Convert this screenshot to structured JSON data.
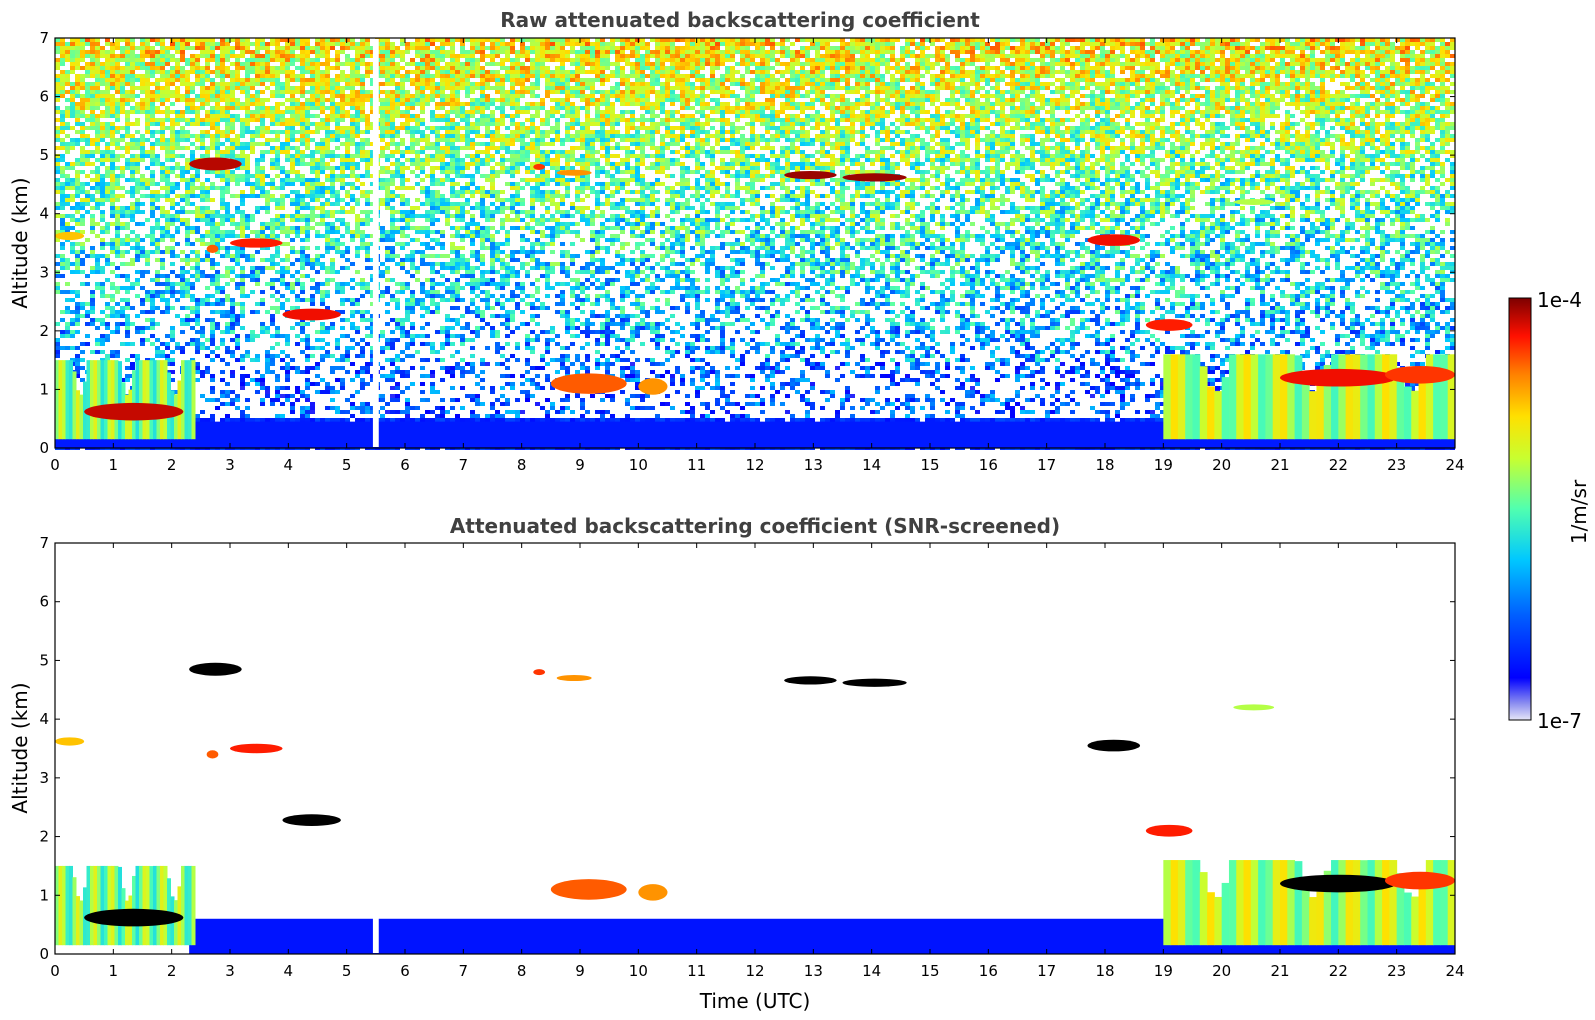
{
  "chart_data": [
    {
      "type": "heatmap",
      "title": "Raw attenuated backscattering coefficient",
      "xlabel": "",
      "ylabel": "Altitude (km)",
      "xlim": [
        0,
        24
      ],
      "ylim": [
        0,
        7
      ],
      "x_ticks": [
        0,
        1,
        2,
        3,
        4,
        5,
        6,
        7,
        8,
        9,
        10,
        11,
        12,
        13,
        14,
        15,
        16,
        17,
        18,
        19,
        20,
        21,
        22,
        23,
        24
      ],
      "y_ticks": [
        0,
        1,
        2,
        3,
        4,
        5,
        6,
        7
      ],
      "data_gap": [
        5.45,
        5.55
      ],
      "clouds": [
        {
          "t0": 2.3,
          "t1": 3.2,
          "alt": 4.85,
          "h": 0.22,
          "level": 0.96
        },
        {
          "t0": 3.0,
          "t1": 3.9,
          "alt": 3.5,
          "h": 0.16,
          "level": 0.9
        },
        {
          "t0": 2.6,
          "t1": 2.8,
          "alt": 3.4,
          "h": 0.14,
          "level": 0.85
        },
        {
          "t0": 3.9,
          "t1": 4.9,
          "alt": 2.28,
          "h": 0.2,
          "level": 0.92
        },
        {
          "t0": 0.0,
          "t1": 0.5,
          "alt": 3.62,
          "h": 0.14,
          "level": 0.75
        },
        {
          "t0": 8.2,
          "t1": 8.4,
          "alt": 4.8,
          "h": 0.1,
          "level": 0.88
        },
        {
          "t0": 8.6,
          "t1": 9.2,
          "alt": 4.7,
          "h": 0.06,
          "level": 0.8
        },
        {
          "t0": 12.5,
          "t1": 13.4,
          "alt": 4.66,
          "h": 0.14,
          "level": 0.98
        },
        {
          "t0": 13.5,
          "t1": 14.6,
          "alt": 4.62,
          "h": 0.14,
          "level": 0.98
        },
        {
          "t0": 17.7,
          "t1": 18.6,
          "alt": 3.55,
          "h": 0.2,
          "level": 0.92
        },
        {
          "t0": 18.7,
          "t1": 19.5,
          "alt": 2.1,
          "h": 0.2,
          "level": 0.9
        },
        {
          "t0": 20.2,
          "t1": 20.9,
          "alt": 4.2,
          "h": 0.1,
          "level": 0.6
        },
        {
          "t0": 21.0,
          "t1": 23.0,
          "alt": 1.2,
          "h": 0.3,
          "level": 0.92
        },
        {
          "t0": 22.8,
          "t1": 24.0,
          "alt": 1.25,
          "h": 0.3,
          "level": 0.88
        },
        {
          "t0": 8.5,
          "t1": 9.8,
          "alt": 1.1,
          "h": 0.35,
          "level": 0.85
        },
        {
          "t0": 10.0,
          "t1": 10.5,
          "alt": 1.05,
          "h": 0.28,
          "level": 0.8
        },
        {
          "t0": 0.5,
          "t1": 2.2,
          "alt": 0.62,
          "h": 0.3,
          "level": 0.95
        }
      ],
      "low_layers": [
        {
          "t0": 0.0,
          "t1": 2.4,
          "top": 1.5,
          "level": 0.55
        },
        {
          "t0": 19.0,
          "t1": 24.0,
          "top": 1.6,
          "level": 0.6
        }
      ]
    },
    {
      "type": "heatmap",
      "title": "Attenuated backscattering coefficient (SNR-screened)",
      "xlabel": "Time (UTC)",
      "ylabel": "Altitude (km)",
      "xlim": [
        0,
        24
      ],
      "ylim": [
        0,
        7
      ],
      "x_ticks": [
        0,
        1,
        2,
        3,
        4,
        5,
        6,
        7,
        8,
        9,
        10,
        11,
        12,
        13,
        14,
        15,
        16,
        17,
        18,
        19,
        20,
        21,
        22,
        23,
        24
      ],
      "y_ticks": [
        0,
        1,
        2,
        3,
        4,
        5,
        6,
        7
      ],
      "data_gap": [
        5.45,
        5.55
      ],
      "screened": true
    }
  ],
  "colorbar": {
    "label": "1/m/sr",
    "max_label": "1e-4",
    "min_label": "1e-7",
    "scale": "log",
    "range": [
      1e-07,
      0.0001
    ]
  }
}
